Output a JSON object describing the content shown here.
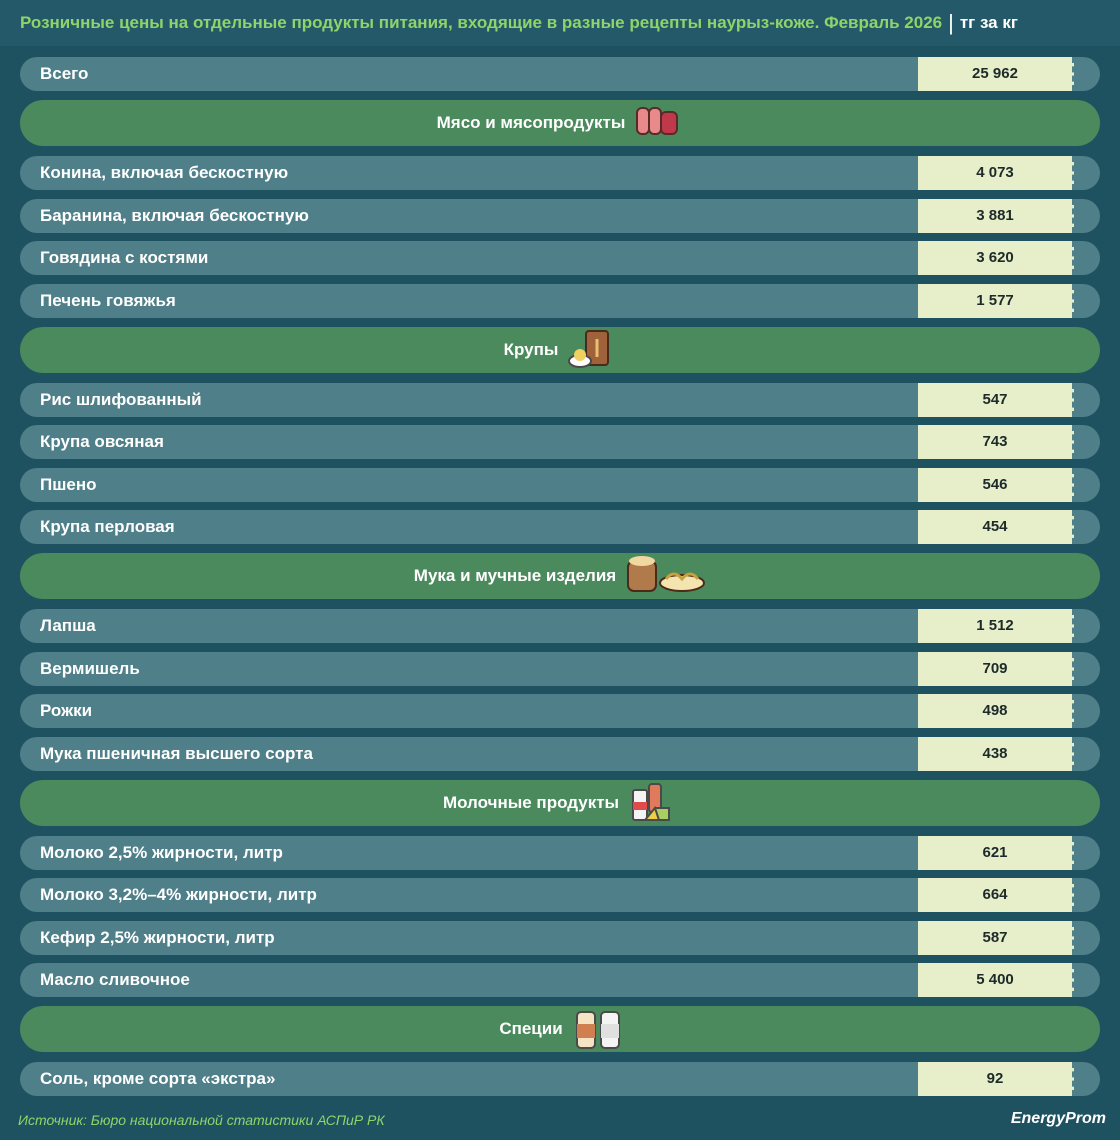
{
  "title": "Розничные цены на отдельные продукты питания, входящие в разные рецепты наурыз-коже. Февраль 2026",
  "unit": "тг за кг",
  "total": {
    "label": "Всего",
    "value": "25 962"
  },
  "sections": [
    {
      "title": "Мясо и мясопродукты",
      "rows": [
        {
          "label": "Конина, включая бескостную",
          "value": "4 073"
        },
        {
          "label": "Баранина, включая бескостную",
          "value": "3 881"
        },
        {
          "label": "Говядина с костями",
          "value": "3 620"
        },
        {
          "label": "Печень говяжья",
          "value": "1 577"
        }
      ]
    },
    {
      "title": "Крупы",
      "rows": [
        {
          "label": "Рис шлифованный",
          "value": "547"
        },
        {
          "label": "Крупа овсяная",
          "value": "743"
        },
        {
          "label": "Пшено",
          "value": "546"
        },
        {
          "label": "Крупа перловая",
          "value": "454"
        }
      ]
    },
    {
      "title": "Мука и мучные изделия",
      "rows": [
        {
          "label": "Лапша",
          "value": "1 512"
        },
        {
          "label": "Вермишель",
          "value": "709"
        },
        {
          "label": "Рожки",
          "value": "498"
        },
        {
          "label": "Мука пшеничная высшего сорта",
          "value": "438"
        }
      ]
    },
    {
      "title": "Молочные продукты",
      "rows": [
        {
          "label": "Молоко 2,5% жирности, литр",
          "value": "621"
        },
        {
          "label": "Молоко 3,2%–4% жирности, литр",
          "value": "664"
        },
        {
          "label": "Кефир 2,5% жирности, литр",
          "value": "587"
        },
        {
          "label": "Масло сливочное",
          "value": "5 400"
        }
      ]
    },
    {
      "title": "Специи",
      "rows": [
        {
          "label": "Соль, кроме сорта «экстра»",
          "value": "92"
        }
      ]
    }
  ],
  "source": "Источник: Бюро национальной статистики АСПиР РК",
  "brand": "EnergyProm"
}
